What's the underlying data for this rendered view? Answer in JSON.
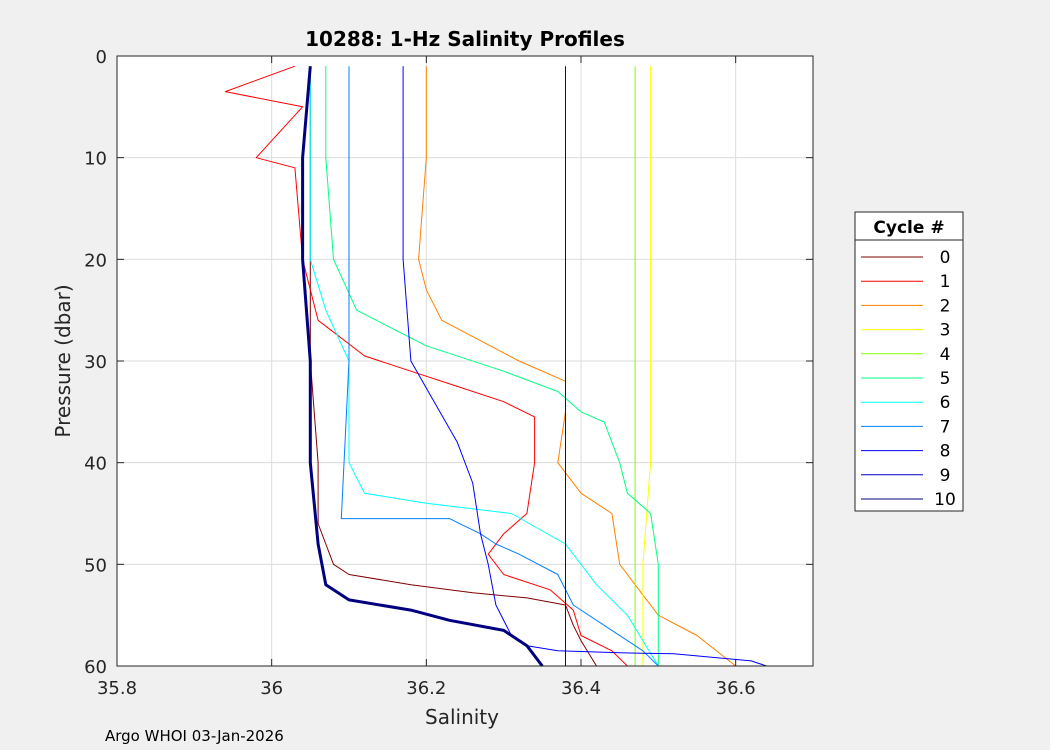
{
  "chart_data": {
    "type": "line",
    "title": "10288: 1-Hz Salinity Profiles",
    "xlabel": "Salinity",
    "ylabel": "Pressure (dbar)",
    "xlim": [
      35.8,
      36.7
    ],
    "ylim": [
      0,
      60
    ],
    "y_reversed": true,
    "grid": true,
    "x_ticks": [
      35.8,
      36.0,
      36.2,
      36.4,
      36.6
    ],
    "x_tick_labels": [
      "35.8",
      "36",
      "36.2",
      "36.4",
      "36.6"
    ],
    "y_ticks": [
      0,
      10,
      20,
      30,
      40,
      50,
      60
    ],
    "y_tick_labels": [
      "0",
      "10",
      "20",
      "30",
      "40",
      "50",
      "60"
    ],
    "legend_title": "Cycle #",
    "legend_position": "right",
    "series": [
      {
        "name": "0",
        "color": "#7f0000",
        "x": [
          36.05,
          36.05,
          36.05,
          36.05,
          36.05,
          36.05,
          36.06,
          36.06,
          36.07,
          36.08,
          36.1,
          36.18,
          36.26,
          36.33,
          36.38,
          36.39,
          36.4,
          36.42
        ],
        "y": [
          1,
          5,
          10,
          15,
          20,
          30,
          40,
          46,
          48,
          50,
          51,
          52,
          52.8,
          53.3,
          54,
          56,
          57.5,
          60
        ]
      },
      {
        "name": "1",
        "color": "#ff0000",
        "x": [
          36.03,
          35.94,
          36.04,
          35.98,
          36.03,
          36.04,
          36.05,
          36.06,
          36.12,
          36.18,
          36.24,
          36.3,
          36.34,
          36.34,
          36.33,
          36.3,
          36.28,
          36.3,
          36.36,
          36.39,
          36.4,
          36.44,
          36.46
        ],
        "y": [
          1,
          3.5,
          5,
          10,
          11,
          20,
          23,
          26,
          29.5,
          31,
          32.5,
          34,
          35.5,
          40,
          45,
          47,
          49,
          51,
          52.5,
          54.5,
          57,
          58.5,
          60
        ]
      },
      {
        "name": "2",
        "color": "#ff8000",
        "x": [
          36.2,
          36.2,
          36.19,
          36.2,
          36.22,
          36.27,
          36.32,
          36.38,
          36.38,
          36.37,
          36.4,
          36.44,
          36.45,
          36.47,
          36.5,
          36.55,
          36.6
        ],
        "y": [
          1,
          10,
          20,
          23,
          26,
          28,
          30,
          32,
          35,
          40,
          43,
          45,
          50,
          52,
          55,
          57,
          60
        ]
      },
      {
        "name": "3",
        "color": "#ffff00",
        "x": [
          36.49,
          36.49,
          36.49,
          36.49,
          36.48,
          36.48
        ],
        "y": [
          1,
          10,
          20,
          40,
          50,
          60
        ]
      },
      {
        "name": "4",
        "color": "#80ff00",
        "x": [
          36.47,
          36.47,
          36.47,
          36.47,
          36.47,
          36.47
        ],
        "y": [
          1,
          10,
          20,
          40,
          50,
          60
        ]
      },
      {
        "name": "5",
        "color": "#00ff80",
        "x": [
          36.07,
          36.07,
          36.08,
          36.11,
          36.2,
          36.3,
          36.37,
          36.4,
          36.43,
          36.45,
          36.46,
          36.49,
          36.5,
          36.5,
          36.5
        ],
        "y": [
          1,
          10,
          20,
          25,
          28.5,
          31,
          33,
          35,
          36,
          40,
          43,
          45,
          50,
          55,
          60
        ]
      },
      {
        "name": "6",
        "color": "#00ffff",
        "x": [
          36.05,
          36.05,
          36.05,
          36.07,
          36.1,
          36.1,
          36.12,
          36.2,
          36.31,
          36.38,
          36.42,
          36.46,
          36.5
        ],
        "y": [
          1,
          10,
          20,
          25,
          30,
          40,
          43,
          44,
          45,
          48,
          52,
          55,
          60
        ]
      },
      {
        "name": "7",
        "color": "#0080ff",
        "x": [
          36.1,
          36.1,
          36.1,
          36.1,
          36.09,
          36.23,
          36.27,
          36.29,
          36.32,
          36.37,
          36.39,
          36.44,
          36.48,
          36.5
        ],
        "y": [
          1,
          10,
          20,
          30,
          45.5,
          45.5,
          47,
          48,
          49,
          51,
          54,
          56.5,
          58.5,
          60
        ]
      },
      {
        "name": "8",
        "color": "#0000ff",
        "x": [
          36.17,
          36.17,
          36.17,
          36.18,
          36.21,
          36.24,
          36.26,
          36.27,
          36.28,
          36.29,
          36.31,
          36.33,
          36.37,
          36.45,
          36.52,
          36.62,
          36.64
        ],
        "y": [
          1,
          10,
          20,
          30,
          34,
          38,
          42,
          47,
          50,
          54,
          57,
          58,
          58.5,
          58.7,
          58.8,
          59.5,
          60
        ]
      },
      {
        "name": "9",
        "color": "#0000c0",
        "x": [
          36.38,
          36.38,
          36.38,
          36.38,
          36.38,
          36.38
        ],
        "y": [
          1,
          10,
          20,
          40,
          50,
          60
        ]
      },
      {
        "name": "10",
        "color": "#000080",
        "x": [
          36.05,
          36.04,
          36.04,
          36.05,
          36.05,
          36.06,
          36.07,
          36.1,
          36.18,
          36.23,
          36.3,
          36.33,
          36.35
        ],
        "y": [
          1,
          10,
          20,
          30,
          40,
          48,
          52,
          53.5,
          54.5,
          55.5,
          56.5,
          58,
          60
        ]
      }
    ]
  },
  "footer": {
    "caption": "Argo WHOI 03-Jan-2026"
  }
}
